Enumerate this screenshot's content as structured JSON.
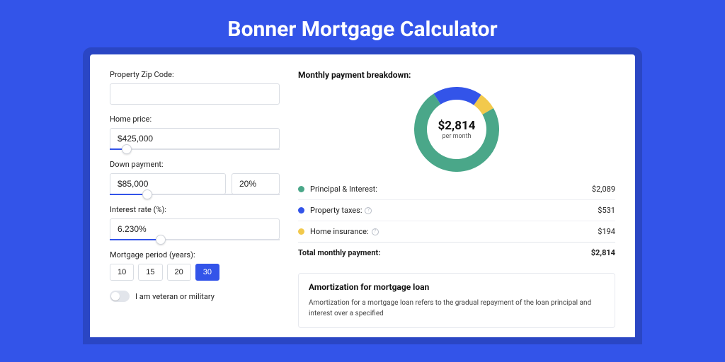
{
  "title": "Bonner Mortgage Calculator",
  "colors": {
    "page_bg": "#3354e9",
    "card_shadow": "#2a46c4",
    "primary": "#3354e9",
    "border": "#d9dde3",
    "text": "#222222"
  },
  "form": {
    "zip": {
      "label": "Property Zip Code:",
      "value": ""
    },
    "home_price": {
      "label": "Home price:",
      "value": "$425,000",
      "slider_pct": 10
    },
    "down_payment": {
      "label": "Down payment:",
      "amount": "$85,000",
      "percent": "20%",
      "slider_pct": 22
    },
    "interest_rate": {
      "label": "Interest rate (%):",
      "value": "6.230%",
      "slider_pct": 30
    },
    "period": {
      "label": "Mortgage period (years):",
      "options": [
        "10",
        "15",
        "20",
        "30"
      ],
      "selected": "30"
    },
    "veteran": {
      "label": "I am veteran or military",
      "checked": false
    }
  },
  "breakdown": {
    "title": "Monthly payment breakdown:",
    "center_amount": "$2,814",
    "center_sub": "per month",
    "donut": {
      "type": "donut",
      "size": 120,
      "stroke_width": 18,
      "background": "#ffffff",
      "segments": [
        {
          "label": "Principal & Interest:",
          "value": "$2,089",
          "num": 2089,
          "color": "#4aa789",
          "show_info": false
        },
        {
          "label": "Property taxes:",
          "value": "$531",
          "num": 531,
          "color": "#3354e9",
          "show_info": true
        },
        {
          "label": "Home insurance:",
          "value": "$194",
          "num": 194,
          "color": "#f2c94c",
          "show_info": true
        }
      ],
      "start_angle_deg": -30
    },
    "total": {
      "label": "Total monthly payment:",
      "value": "$2,814"
    }
  },
  "amort": {
    "title": "Amortization for mortgage loan",
    "text": "Amortization for a mortgage loan refers to the gradual repayment of the loan principal and interest over a specified"
  }
}
